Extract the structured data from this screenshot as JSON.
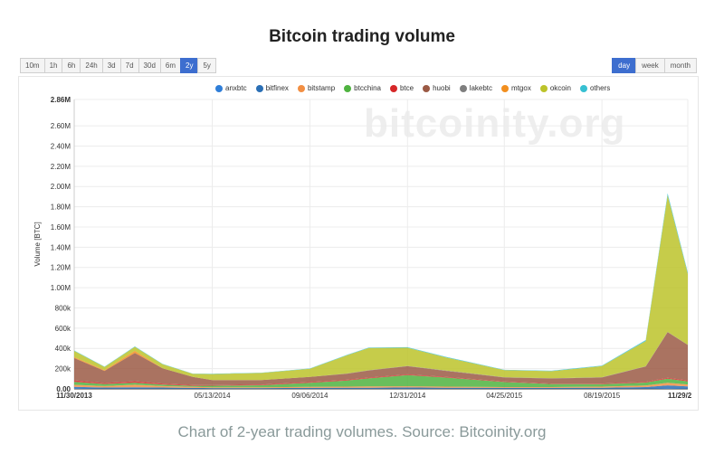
{
  "title": "Bitcoin trading volume",
  "caption": "Chart of 2-year trading volumes. Source: Bitcoinity.org",
  "watermark": "bitcoinity.org",
  "range_buttons": [
    {
      "label": "10m",
      "active": false
    },
    {
      "label": "1h",
      "active": false
    },
    {
      "label": "6h",
      "active": false
    },
    {
      "label": "24h",
      "active": false
    },
    {
      "label": "3d",
      "active": false
    },
    {
      "label": "7d",
      "active": false
    },
    {
      "label": "30d",
      "active": false
    },
    {
      "label": "6m",
      "active": false
    },
    {
      "label": "2y",
      "active": true
    },
    {
      "label": "5y",
      "active": false
    }
  ],
  "period_buttons": [
    {
      "label": "day",
      "active": true
    },
    {
      "label": "week",
      "active": false
    },
    {
      "label": "month",
      "active": false
    }
  ],
  "chart_data": {
    "type": "area",
    "stacked": true,
    "ylabel": "Volume [BTC]",
    "ylim": [
      0,
      2860000
    ],
    "y_ticks": [
      {
        "v": 0,
        "label": "0.00"
      },
      {
        "v": 200000,
        "label": "200k"
      },
      {
        "v": 400000,
        "label": "400k"
      },
      {
        "v": 600000,
        "label": "600k"
      },
      {
        "v": 800000,
        "label": "800k"
      },
      {
        "v": 1000000,
        "label": "1.00M"
      },
      {
        "v": 1200000,
        "label": "1.20M"
      },
      {
        "v": 1400000,
        "label": "1.40M"
      },
      {
        "v": 1600000,
        "label": "1.60M"
      },
      {
        "v": 1800000,
        "label": "1.80M"
      },
      {
        "v": 2000000,
        "label": "2.00M"
      },
      {
        "v": 2200000,
        "label": "2.20M"
      },
      {
        "v": 2400000,
        "label": "2.40M"
      },
      {
        "v": 2600000,
        "label": "2.60M"
      },
      {
        "v": 2860000,
        "label": "2.86M"
      }
    ],
    "x_ticks": [
      {
        "x": "2013-11-30",
        "label": "11/30/2013"
      },
      {
        "x": "2014-05-13",
        "label": "05/13/2014"
      },
      {
        "x": "2014-09-06",
        "label": "09/06/2014"
      },
      {
        "x": "2014-12-31",
        "label": "12/31/2014"
      },
      {
        "x": "2015-04-25",
        "label": "04/25/2015"
      },
      {
        "x": "2015-08-19",
        "label": "08/19/2015"
      },
      {
        "x": "2015-11-29",
        "label": "11/29/2"
      }
    ],
    "xlim": [
      "2013-11-30",
      "2015-11-29"
    ],
    "grid": true,
    "legend_position": "top",
    "series": [
      {
        "name": "anxbtc",
        "color": "#2f7ed8"
      },
      {
        "name": "bitfinex",
        "color": "#2a6fb5"
      },
      {
        "name": "bitstamp",
        "color": "#f28f43"
      },
      {
        "name": "btcchina",
        "color": "#4fb340"
      },
      {
        "name": "btce",
        "color": "#d62728"
      },
      {
        "name": "huobi",
        "color": "#9b5a45"
      },
      {
        "name": "lakebtc",
        "color": "#7f7f7f"
      },
      {
        "name": "mtgox",
        "color": "#f28f1f"
      },
      {
        "name": "okcoin",
        "color": "#bcc32a"
      },
      {
        "name": "others",
        "color": "#37c0d2"
      }
    ],
    "points": [
      {
        "x": "2013-11-30",
        "values": {
          "anxbtc": 5000,
          "bitfinex": 15000,
          "bitstamp": 20000,
          "btcchina": 30000,
          "btce": 15000,
          "huobi": 220000,
          "lakebtc": 0,
          "mtgox": 10000,
          "okcoin": 60000,
          "others": 5000
        }
      },
      {
        "x": "2014-01-05",
        "values": {
          "anxbtc": 3000,
          "bitfinex": 10000,
          "bitstamp": 15000,
          "btcchina": 20000,
          "btce": 10000,
          "huobi": 120000,
          "lakebtc": 0,
          "mtgox": 8000,
          "okcoin": 30000,
          "others": 4000
        }
      },
      {
        "x": "2014-02-10",
        "values": {
          "anxbtc": 4000,
          "bitfinex": 12000,
          "bitstamp": 25000,
          "btcchina": 20000,
          "btce": 15000,
          "huobi": 280000,
          "lakebtc": 0,
          "mtgox": 20000,
          "okcoin": 40000,
          "others": 4000
        }
      },
      {
        "x": "2014-03-15",
        "values": {
          "anxbtc": 3000,
          "bitfinex": 10000,
          "bitstamp": 15000,
          "btcchina": 15000,
          "btce": 10000,
          "huobi": 150000,
          "lakebtc": 0,
          "mtgox": 0,
          "okcoin": 40000,
          "others": 4000
        }
      },
      {
        "x": "2014-04-20",
        "values": {
          "anxbtc": 2000,
          "bitfinex": 8000,
          "bitstamp": 10000,
          "btcchina": 10000,
          "btce": 8000,
          "huobi": 80000,
          "lakebtc": 0,
          "mtgox": 0,
          "okcoin": 30000,
          "others": 3000
        }
      },
      {
        "x": "2014-05-13",
        "values": {
          "anxbtc": 2000,
          "bitfinex": 6000,
          "bitstamp": 8000,
          "btcchina": 15000,
          "btce": 6000,
          "huobi": 50000,
          "lakebtc": 0,
          "mtgox": 0,
          "okcoin": 60000,
          "others": 3000
        }
      },
      {
        "x": "2014-07-10",
        "values": {
          "anxbtc": 2000,
          "bitfinex": 6000,
          "bitstamp": 8000,
          "btcchina": 20000,
          "btce": 6000,
          "huobi": 45000,
          "lakebtc": 0,
          "mtgox": 0,
          "okcoin": 70000,
          "others": 3000
        }
      },
      {
        "x": "2014-09-06",
        "values": {
          "anxbtc": 2000,
          "bitfinex": 8000,
          "bitstamp": 10000,
          "btcchina": 40000,
          "btce": 8000,
          "huobi": 50000,
          "lakebtc": 1000,
          "mtgox": 0,
          "okcoin": 80000,
          "others": 3000
        }
      },
      {
        "x": "2014-10-20",
        "values": {
          "anxbtc": 2000,
          "bitfinex": 10000,
          "bitstamp": 10000,
          "btcchina": 60000,
          "btce": 8000,
          "huobi": 60000,
          "lakebtc": 2000,
          "mtgox": 0,
          "okcoin": 180000,
          "others": 4000
        }
      },
      {
        "x": "2014-11-15",
        "values": {
          "anxbtc": 2000,
          "bitfinex": 10000,
          "bitstamp": 12000,
          "btcchina": 80000,
          "btce": 8000,
          "huobi": 70000,
          "lakebtc": 2000,
          "mtgox": 0,
          "okcoin": 220000,
          "others": 4000
        }
      },
      {
        "x": "2014-12-31",
        "values": {
          "anxbtc": 2000,
          "bitfinex": 12000,
          "bitstamp": 12000,
          "btcchina": 110000,
          "btce": 8000,
          "huobi": 80000,
          "lakebtc": 3000,
          "mtgox": 0,
          "okcoin": 180000,
          "others": 5000
        }
      },
      {
        "x": "2015-02-15",
        "values": {
          "anxbtc": 2000,
          "bitfinex": 10000,
          "bitstamp": 10000,
          "btcchina": 90000,
          "btce": 6000,
          "huobi": 60000,
          "lakebtc": 3000,
          "mtgox": 0,
          "okcoin": 130000,
          "others": 5000
        }
      },
      {
        "x": "2015-04-25",
        "values": {
          "anxbtc": 2000,
          "bitfinex": 8000,
          "bitstamp": 8000,
          "btcchina": 50000,
          "btce": 5000,
          "huobi": 40000,
          "lakebtc": 2000,
          "mtgox": 0,
          "okcoin": 70000,
          "others": 4000
        }
      },
      {
        "x": "2015-06-20",
        "values": {
          "anxbtc": 2000,
          "bitfinex": 8000,
          "bitstamp": 8000,
          "btcchina": 30000,
          "btce": 5000,
          "huobi": 50000,
          "lakebtc": 2000,
          "mtgox": 0,
          "okcoin": 70000,
          "others": 5000
        }
      },
      {
        "x": "2015-08-19",
        "values": {
          "anxbtc": 2000,
          "bitfinex": 10000,
          "bitstamp": 10000,
          "btcchina": 25000,
          "btce": 6000,
          "huobi": 60000,
          "lakebtc": 2000,
          "mtgox": 0,
          "okcoin": 110000,
          "others": 6000
        }
      },
      {
        "x": "2015-10-10",
        "values": {
          "anxbtc": 3000,
          "bitfinex": 15000,
          "bitstamp": 15000,
          "btcchina": 30000,
          "btce": 8000,
          "huobi": 150000,
          "lakebtc": 2000,
          "mtgox": 0,
          "okcoin": 250000,
          "others": 10000
        }
      },
      {
        "x": "2015-11-05",
        "values": {
          "anxbtc": 5000,
          "bitfinex": 30000,
          "bitstamp": 25000,
          "btcchina": 40000,
          "btce": 10000,
          "huobi": 450000,
          "lakebtc": 3000,
          "mtgox": 0,
          "okcoin": 1350000,
          "others": 20000
        }
      },
      {
        "x": "2015-11-29",
        "values": {
          "anxbtc": 4000,
          "bitfinex": 20000,
          "bitstamp": 20000,
          "btcchina": 30000,
          "btce": 10000,
          "huobi": 350000,
          "lakebtc": 2000,
          "mtgox": 0,
          "okcoin": 700000,
          "others": 15000
        }
      }
    ]
  }
}
